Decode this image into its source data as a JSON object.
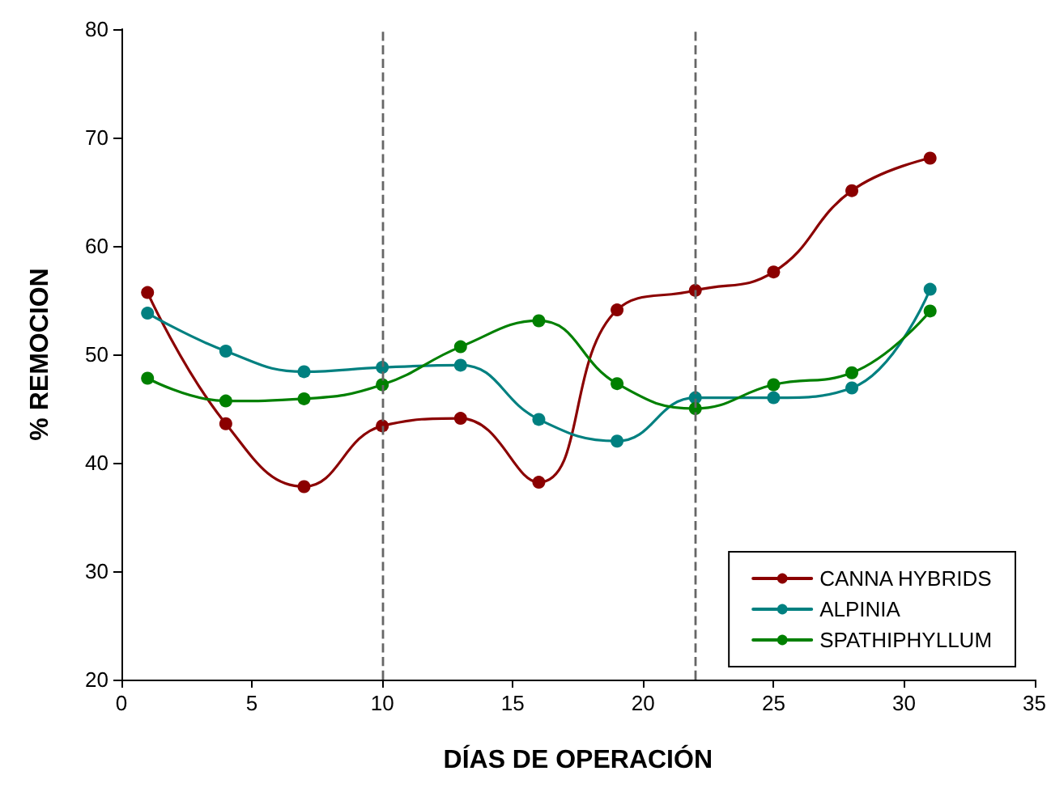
{
  "chart_data": {
    "type": "line",
    "xlabel": "DÍAS DE OPERACIÓN",
    "ylabel": "% REMOCION",
    "x": [
      1,
      4,
      7,
      10,
      13,
      16,
      19,
      22,
      25,
      28,
      31
    ],
    "series": [
      {
        "name": "CANNA HYBRIDS",
        "color": "#8b0000",
        "values": [
          55.7,
          43.6,
          37.8,
          43.4,
          44.1,
          38.2,
          54.1,
          55.9,
          57.6,
          65.1,
          68.1
        ]
      },
      {
        "name": "ALPINIA",
        "color": "#008080",
        "values": [
          53.8,
          50.3,
          48.4,
          48.8,
          49.0,
          44.0,
          42.0,
          46.0,
          46.0,
          46.9,
          56.0
        ]
      },
      {
        "name": "SPATHIPHYLLUM",
        "color": "#008000",
        "values": [
          47.8,
          45.7,
          45.9,
          47.2,
          50.7,
          53.1,
          47.3,
          45.0,
          47.2,
          48.3,
          54.0
        ]
      }
    ],
    "xlim": [
      0,
      35
    ],
    "xticks": [
      0,
      5,
      10,
      15,
      20,
      25,
      30,
      35
    ],
    "ylim": [
      20,
      80
    ],
    "yticks": [
      20,
      30,
      40,
      50,
      60,
      70,
      80
    ],
    "ref_lines": [
      {
        "axis": "x",
        "value": 10,
        "color": "#666666",
        "line_style": "dashed"
      },
      {
        "axis": "x",
        "value": 22,
        "color": "#666666",
        "line_style": "dashed"
      }
    ],
    "grid": false,
    "legend": "bottom right",
    "marker": "circle",
    "line_style": "solid"
  }
}
